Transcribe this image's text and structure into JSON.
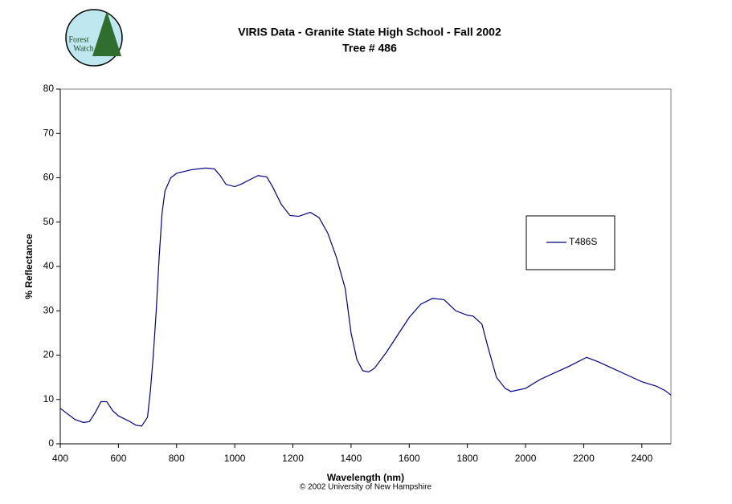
{
  "chart_data": {
    "type": "line",
    "title": "VIRIS Data - Granite State High School - Fall 2002",
    "subtitle": "Tree # 486",
    "x_label": "Wavelength (nm)",
    "y_label": "% Reflectance",
    "footer": "© 2002 University of New Hampshire",
    "logo_text": [
      "Forest",
      "Watch"
    ],
    "x": [
      400,
      420,
      450,
      480,
      500,
      520,
      540,
      560,
      580,
      600,
      640,
      660,
      680,
      700,
      710,
      720,
      730,
      740,
      750,
      760,
      780,
      800,
      850,
      900,
      930,
      950,
      970,
      1000,
      1020,
      1050,
      1080,
      1110,
      1130,
      1160,
      1190,
      1220,
      1260,
      1290,
      1320,
      1350,
      1380,
      1400,
      1420,
      1440,
      1460,
      1480,
      1520,
      1560,
      1600,
      1640,
      1680,
      1720,
      1760,
      1800,
      1820,
      1850,
      1870,
      1900,
      1930,
      1950,
      2000,
      2050,
      2100,
      2150,
      2210,
      2250,
      2300,
      2350,
      2400,
      2450,
      2480,
      2500
    ],
    "series": [
      {
        "name": "T486S",
        "color": "#000080",
        "values": [
          8,
          7,
          5.5,
          4.8,
          5,
          7,
          9.5,
          9.5,
          7.5,
          6.3,
          5,
          4.2,
          4,
          6,
          12,
          20,
          30,
          42,
          52,
          57,
          60,
          61,
          61.8,
          62.2,
          62,
          60.5,
          58.5,
          58,
          58.5,
          59.5,
          60.5,
          60.2,
          58,
          54,
          51.5,
          51.3,
          52.2,
          51,
          47.5,
          42,
          35,
          25,
          19,
          16.5,
          16.2,
          17,
          20.5,
          24.5,
          28.5,
          31.5,
          32.8,
          32.5,
          30,
          29,
          28.8,
          27,
          22,
          15,
          12.5,
          11.8,
          12.5,
          14.5,
          16,
          17.5,
          19.5,
          18.5,
          17,
          15.5,
          14,
          13,
          12,
          11
        ]
      }
    ],
    "xlim": [
      400,
      2500
    ],
    "xticks": [
      400,
      600,
      800,
      1000,
      1200,
      1400,
      1600,
      1800,
      2000,
      2200,
      2400
    ],
    "ylim": [
      0,
      80
    ],
    "yticks": [
      0,
      10,
      20,
      30,
      40,
      50,
      60,
      70,
      80
    ],
    "legend": "right"
  }
}
